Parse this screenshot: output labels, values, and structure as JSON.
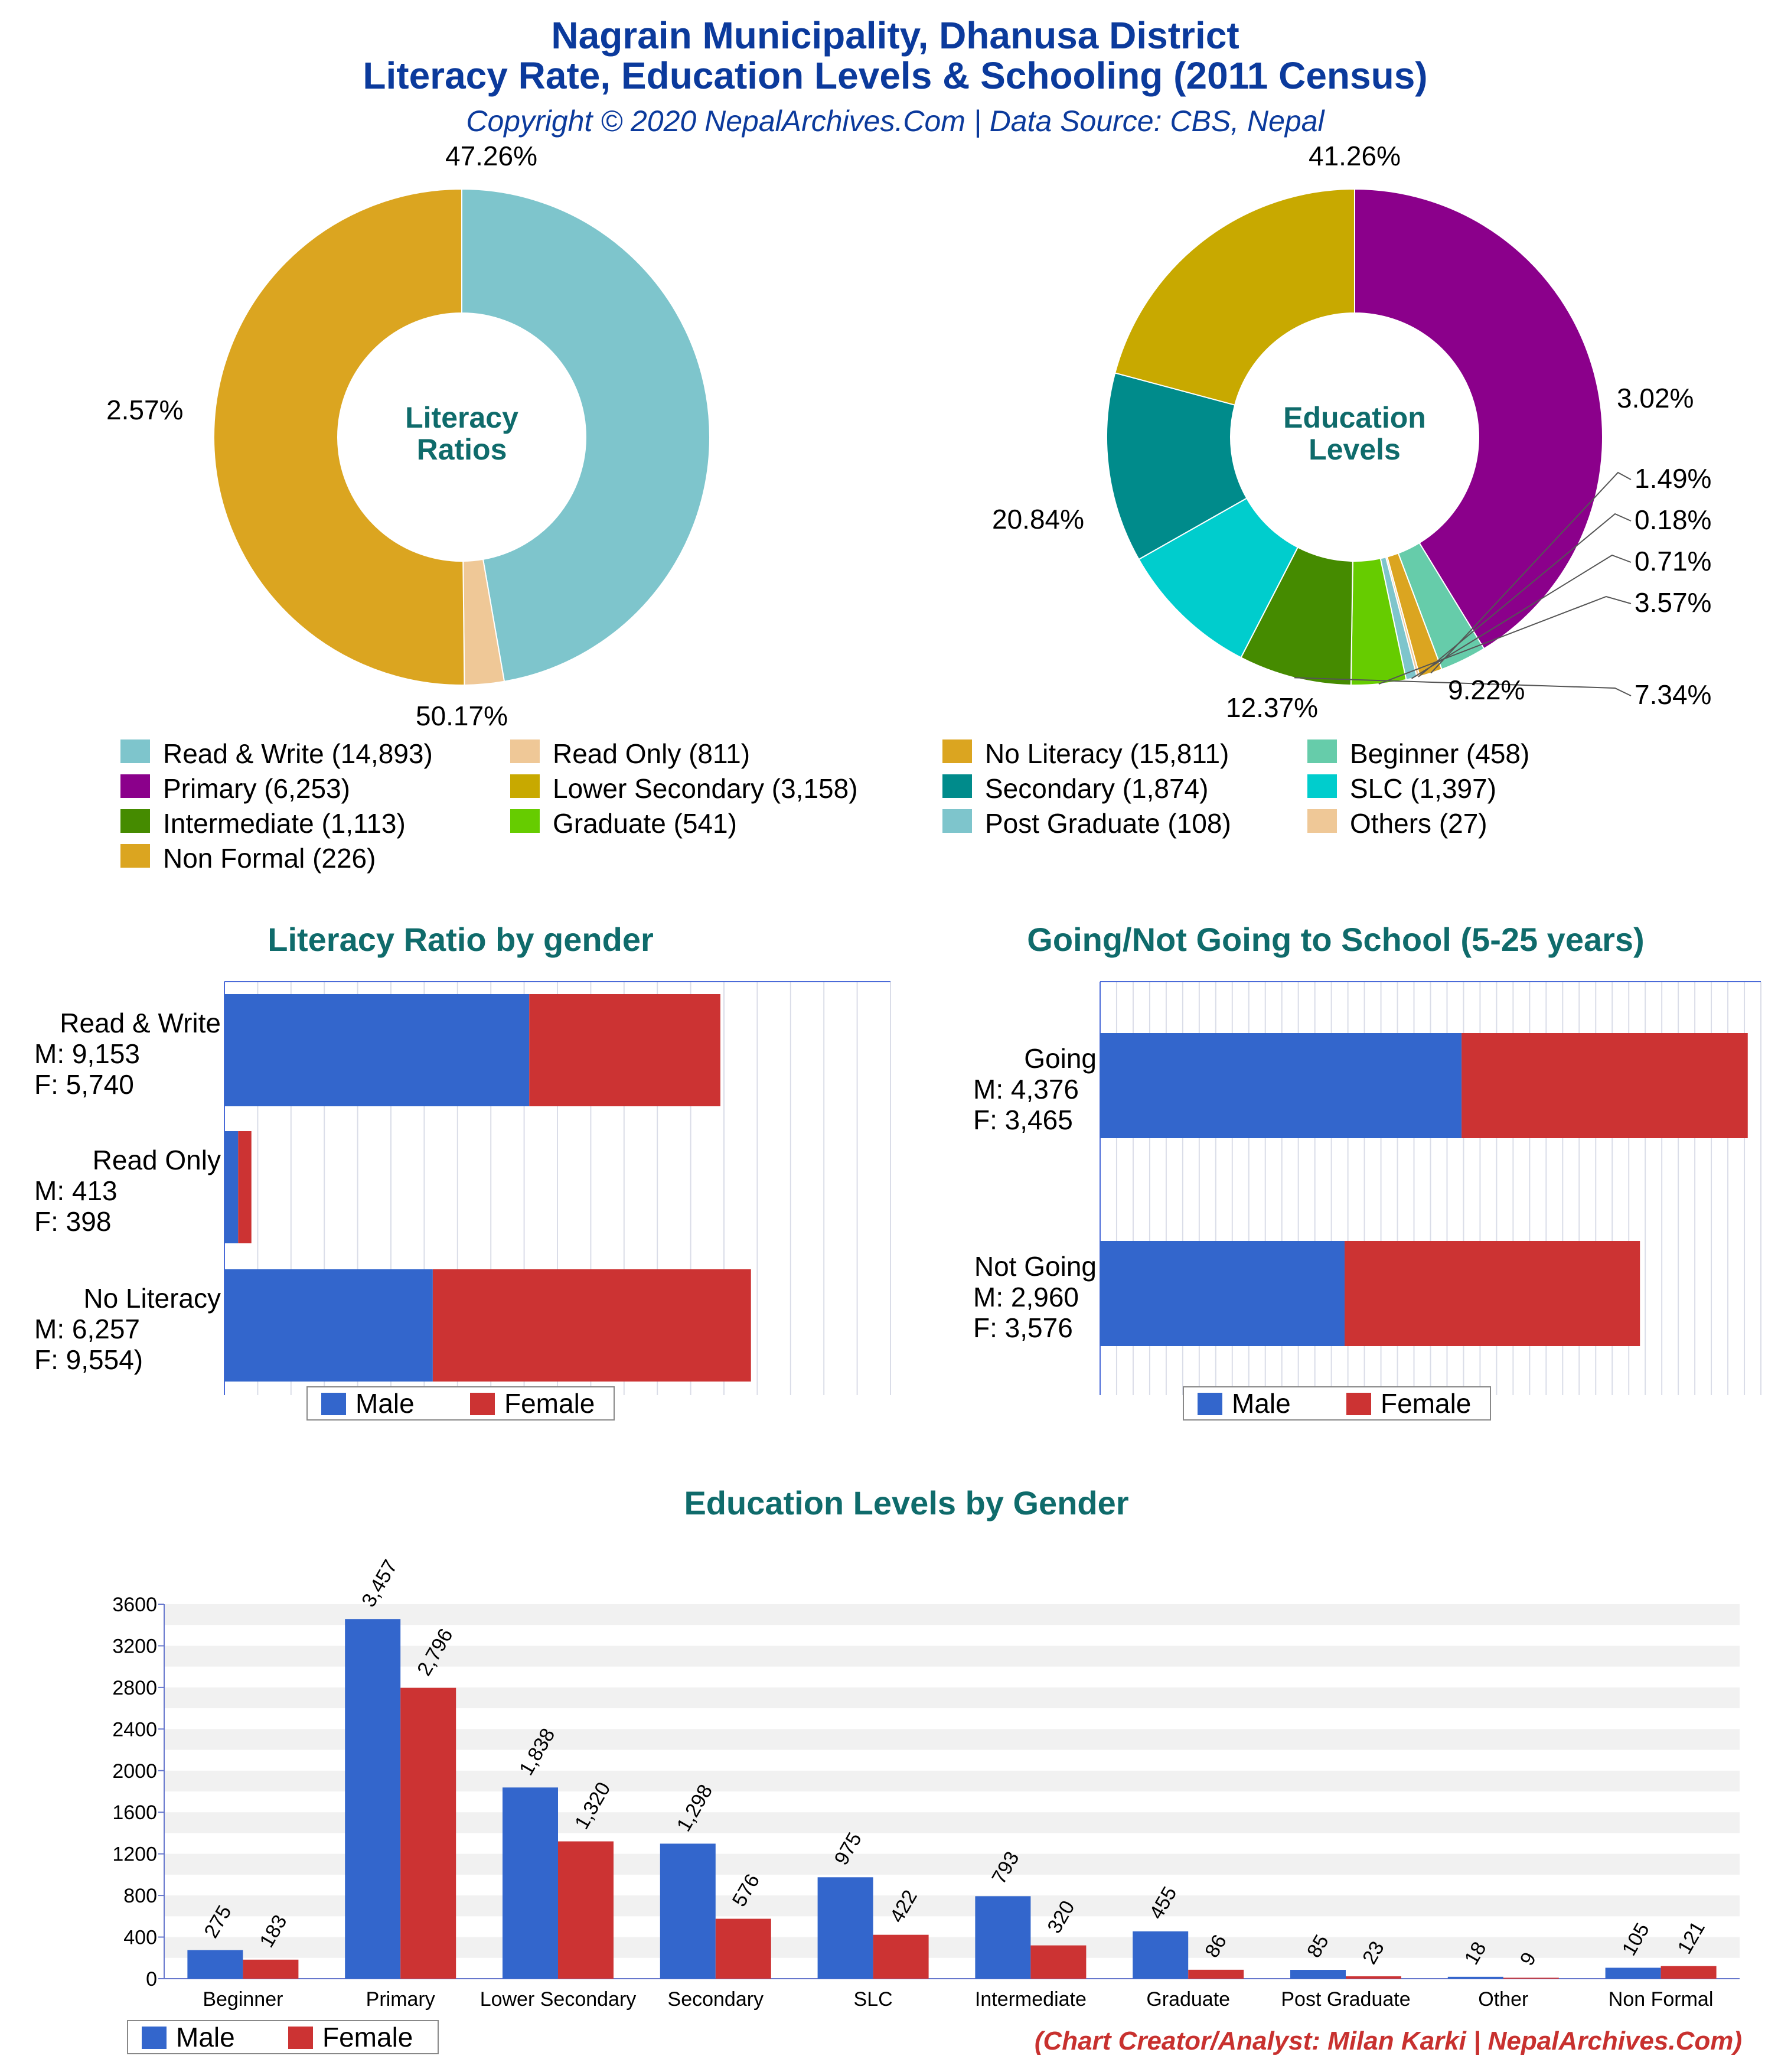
{
  "header": {
    "title_line1": "Nagrain Municipality, Dhanusa District",
    "title_line2": "Literacy Rate, Education Levels & Schooling (2011 Census)",
    "subtitle": "Copyright © 2020 NepalArchives.Com | Data Source: CBS, Nepal"
  },
  "colors": {
    "male": "#3366cc",
    "female": "#cc3333"
  },
  "chart_data": [
    {
      "type": "pie",
      "donut": true,
      "center_label": [
        "Literacy",
        "Ratios"
      ],
      "slices": [
        {
          "label": "Read & Write",
          "value": 14893,
          "pct": "47.26%",
          "color": "#7ec5cc"
        },
        {
          "label": "Read Only",
          "value": 811,
          "pct": "2.57%",
          "color": "#efc897"
        },
        {
          "label": "No Literacy",
          "value": 15811,
          "pct": "50.17%",
          "color": "#dba520"
        }
      ]
    },
    {
      "type": "pie",
      "donut": true,
      "center_label": [
        "Education",
        "Levels"
      ],
      "slices": [
        {
          "label": "Primary",
          "value": 6253,
          "pct": "41.26%",
          "color": "#8b008b"
        },
        {
          "label": "Beginner",
          "value": 458,
          "pct": "3.02%",
          "color": "#66ccaa"
        },
        {
          "label": "Non Formal",
          "value": 226,
          "pct": "1.49%",
          "color": "#dba520"
        },
        {
          "label": "Others",
          "value": 27,
          "pct": "0.18%",
          "color": "#efc897"
        },
        {
          "label": "Post Graduate",
          "value": 108,
          "pct": "0.71%",
          "color": "#7ec5cc"
        },
        {
          "label": "Graduate",
          "value": 541,
          "pct": "3.57%",
          "color": "#66cc00"
        },
        {
          "label": "Intermediate",
          "value": 1113,
          "pct": "7.34%",
          "color": "#458b00"
        },
        {
          "label": "SLC",
          "value": 1397,
          "pct": "9.22%",
          "color": "#00cdcd"
        },
        {
          "label": "Secondary",
          "value": 1874,
          "pct": "12.37%",
          "color": "#008b8b"
        },
        {
          "label": "Lower Secondary",
          "value": 3158,
          "pct": "20.84%",
          "color": "#c8a900"
        }
      ]
    },
    {
      "type": "bar",
      "orientation": "horizontal",
      "stacked": true,
      "title": "Literacy Ratio by gender",
      "categories": [
        "Read & Write",
        "Read Only",
        "No Literacy"
      ],
      "category_labels": [
        [
          "Read & Write",
          "M: 9,153",
          "F: 5,740"
        ],
        [
          "Read Only",
          "M: 413",
          "F: 398"
        ],
        [
          "No Literacy",
          "M: 6,257",
          "F: 9,554)"
        ]
      ],
      "series": [
        {
          "name": "Male",
          "values": [
            9153,
            413,
            6257
          ]
        },
        {
          "name": "Female",
          "values": [
            5740,
            398,
            9554
          ]
        }
      ],
      "xlim": [
        0,
        20000
      ],
      "grid": true,
      "legend": "bottom"
    },
    {
      "type": "bar",
      "orientation": "horizontal",
      "stacked": true,
      "title": "Going/Not Going to School (5-25 years)",
      "categories": [
        "Going",
        "Not Going"
      ],
      "category_labels": [
        [
          "Going",
          "M: 4,376",
          "F: 3,465"
        ],
        [
          "Not Going",
          "M: 2,960",
          "F: 3,576"
        ]
      ],
      "series": [
        {
          "name": "Male",
          "values": [
            4376,
            2960
          ]
        },
        {
          "name": "Female",
          "values": [
            3465,
            3576
          ]
        }
      ],
      "xlim": [
        0,
        8000
      ],
      "grid": true,
      "legend": "bottom"
    },
    {
      "type": "bar",
      "orientation": "vertical",
      "title": "Education Levels by Gender",
      "categories": [
        "Beginner",
        "Primary",
        "Lower Secondary",
        "Secondary",
        "SLC",
        "Intermediate",
        "Graduate",
        "Post Graduate",
        "Other",
        "Non Formal"
      ],
      "series": [
        {
          "name": "Male",
          "values": [
            275,
            3457,
            1838,
            1298,
            975,
            793,
            455,
            85,
            18,
            105
          ],
          "labels": [
            "275",
            "3,457",
            "1,838",
            "1,298",
            "975",
            "793",
            "455",
            "85",
            "18",
            "105"
          ]
        },
        {
          "name": "Female",
          "values": [
            183,
            2796,
            1320,
            576,
            422,
            320,
            86,
            23,
            9,
            121
          ],
          "labels": [
            "183",
            "2,796",
            "1,320",
            "576",
            "422",
            "320",
            "86",
            "23",
            "9",
            "121"
          ]
        }
      ],
      "ylim": [
        0,
        3600
      ],
      "yticks": [
        "0",
        "400",
        "800",
        "1200",
        "1600",
        "2000",
        "2400",
        "2800",
        "3200",
        "3600"
      ],
      "grid": true,
      "legend": "bottom-left"
    }
  ],
  "legend_items": [
    [
      "Read & Write (14,893)",
      "Read Only (811)",
      "No Literacy (15,811)",
      "Beginner (458)"
    ],
    [
      "Primary (6,253)",
      "Lower Secondary (3,158)",
      "Secondary (1,874)",
      "SLC (1,397)"
    ],
    [
      "Intermediate (1,113)",
      "Graduate (541)",
      "Post Graduate (108)",
      "Others (27)"
    ],
    [
      "Non Formal (226)"
    ]
  ],
  "legend_colors": [
    [
      "#7ec5cc",
      "#efc897",
      "#dba520",
      "#66ccaa"
    ],
    [
      "#8b008b",
      "#c8a900",
      "#008b8b",
      "#00cdcd"
    ],
    [
      "#458b00",
      "#66cc00",
      "#7ec5cc",
      "#efc897"
    ],
    [
      "#dba520"
    ]
  ],
  "bar_legend": {
    "male": "Male",
    "female": "Female"
  },
  "credit": "(Chart Creator/Analyst: Milan Karki | NepalArchives.Com)"
}
